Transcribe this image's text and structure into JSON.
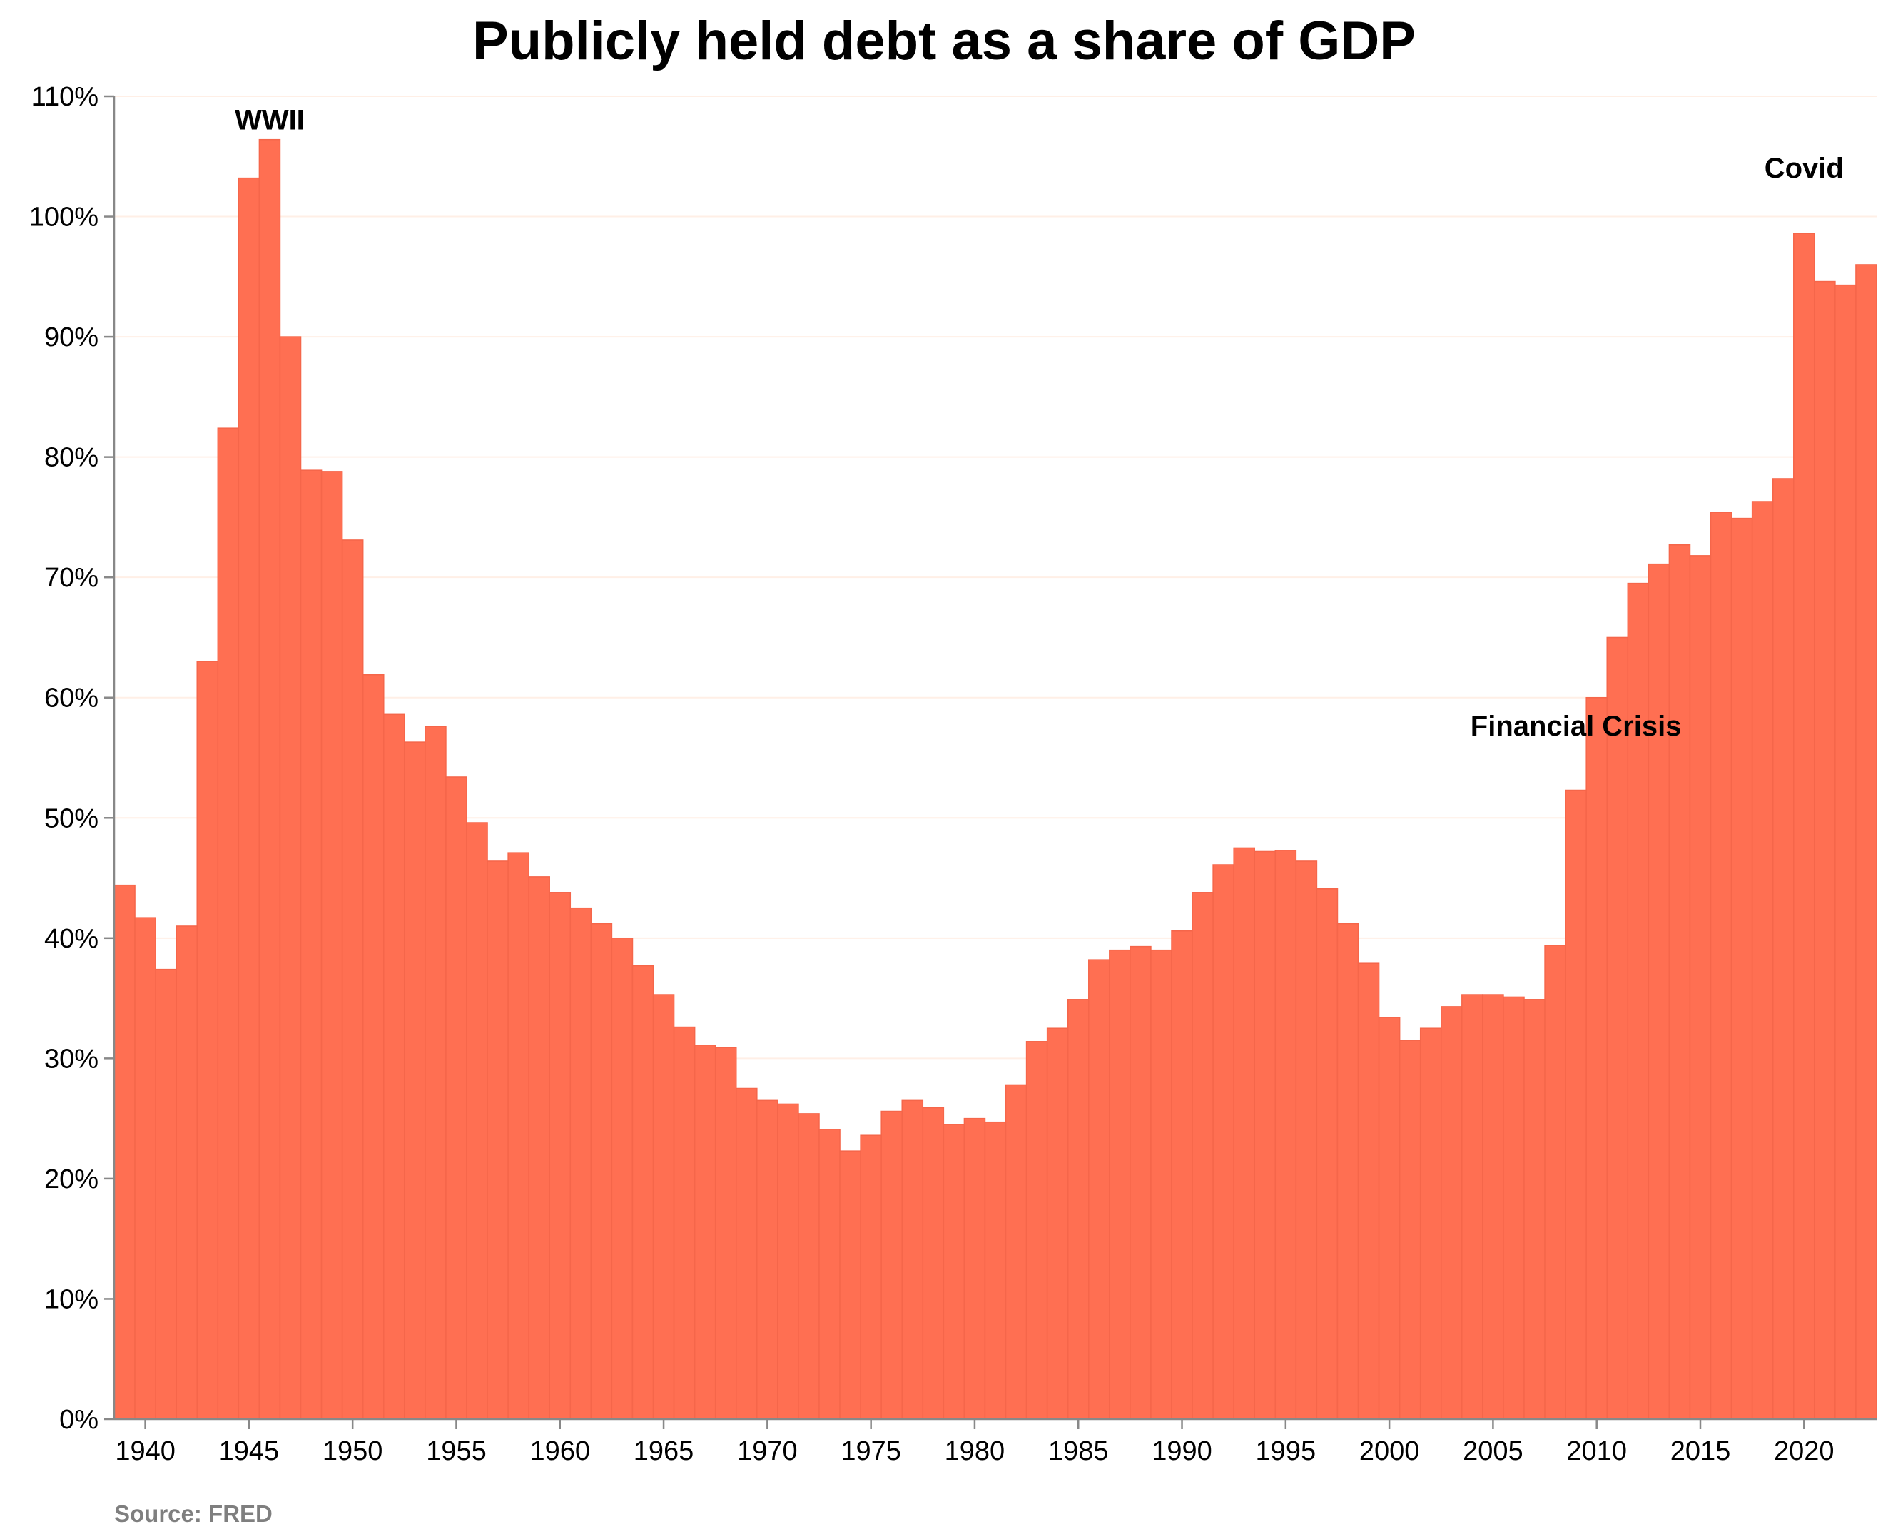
{
  "chart_data": {
    "type": "bar",
    "title": "Publicly held debt as a share of GDP",
    "source": "Source: FRED",
    "xlabel": "",
    "ylabel": "",
    "ylim": [
      0,
      110
    ],
    "y_ticks": [
      0,
      10,
      20,
      30,
      40,
      50,
      60,
      70,
      80,
      90,
      100,
      110
    ],
    "y_tick_labels": [
      "0%",
      "10%",
      "20%",
      "30%",
      "40%",
      "50%",
      "60%",
      "70%",
      "80%",
      "90%",
      "100%",
      "110%"
    ],
    "x_ticks": [
      1940,
      1945,
      1950,
      1955,
      1960,
      1965,
      1970,
      1975,
      1980,
      1985,
      1990,
      1995,
      2000,
      2005,
      2010,
      2015,
      2020
    ],
    "x_tick_labels": [
      "1940",
      "1945",
      "1950",
      "1955",
      "1960",
      "1965",
      "1970",
      "1975",
      "1980",
      "1985",
      "1990",
      "1995",
      "2000",
      "2005",
      "2010",
      "2015",
      "2020"
    ],
    "x_range": [
      1938.5,
      2023.5
    ],
    "bar_color": "#FF6F52",
    "grid": true,
    "grid_color": "#FFEFE6",
    "categories": [
      1939,
      1940,
      1941,
      1942,
      1943,
      1944,
      1945,
      1946,
      1947,
      1948,
      1949,
      1950,
      1951,
      1952,
      1953,
      1954,
      1955,
      1956,
      1957,
      1958,
      1959,
      1960,
      1961,
      1962,
      1963,
      1964,
      1965,
      1966,
      1967,
      1968,
      1969,
      1970,
      1971,
      1972,
      1973,
      1974,
      1975,
      1976,
      1977,
      1978,
      1979,
      1980,
      1981,
      1982,
      1983,
      1984,
      1985,
      1986,
      1987,
      1988,
      1989,
      1990,
      1991,
      1992,
      1993,
      1994,
      1995,
      1996,
      1997,
      1998,
      1999,
      2000,
      2001,
      2002,
      2003,
      2004,
      2005,
      2006,
      2007,
      2008,
      2009,
      2010,
      2011,
      2012,
      2013,
      2014,
      2015,
      2016,
      2017,
      2018,
      2019,
      2020,
      2021,
      2022,
      2023
    ],
    "values": [
      44.4,
      41.7,
      37.4,
      41.0,
      63.0,
      82.4,
      103.2,
      106.4,
      90.0,
      78.9,
      78.8,
      73.1,
      61.9,
      58.6,
      56.3,
      57.6,
      53.4,
      49.6,
      46.4,
      47.1,
      45.1,
      43.8,
      42.5,
      41.2,
      40.0,
      37.7,
      35.3,
      32.6,
      31.1,
      30.9,
      27.5,
      26.5,
      26.2,
      25.4,
      24.1,
      22.3,
      23.6,
      25.6,
      26.5,
      25.9,
      24.5,
      25.0,
      24.7,
      27.8,
      31.4,
      32.5,
      34.9,
      38.2,
      39.0,
      39.3,
      39.0,
      40.6,
      43.8,
      46.1,
      47.5,
      47.2,
      47.3,
      46.4,
      44.1,
      41.2,
      37.9,
      33.4,
      31.5,
      32.5,
      34.3,
      35.3,
      35.3,
      35.1,
      34.9,
      39.4,
      52.3,
      60.0,
      65.0,
      69.5,
      71.1,
      72.7,
      71.8,
      75.4,
      74.9,
      76.3,
      78.2,
      98.6,
      94.6,
      94.3,
      96.0
    ],
    "annotations": [
      {
        "text": "WWII",
        "x": 1946,
        "y": 106.4
      },
      {
        "text": "Financial Crisis",
        "x": 2009,
        "y": 56
      },
      {
        "text": "Covid",
        "x": 2020,
        "y": 102.4
      }
    ]
  }
}
